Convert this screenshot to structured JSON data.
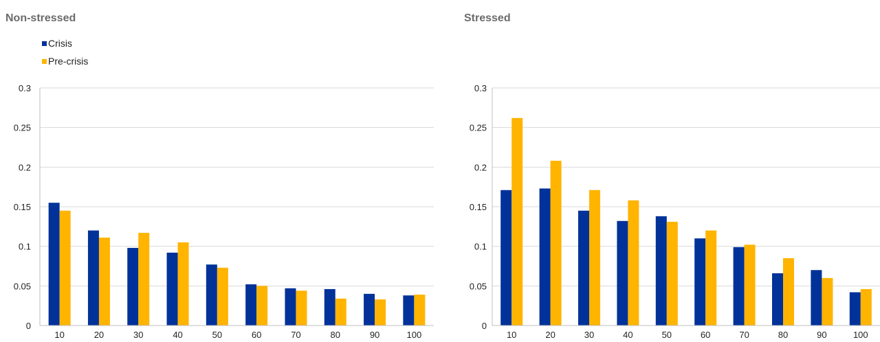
{
  "colors": {
    "crisis": "#003299",
    "pre_crisis": "#FFB400",
    "title": "#6b6b6b",
    "text": "#222222",
    "grid": "#d9d9d9",
    "axis": "#bfbfbf"
  },
  "legend": {
    "items": [
      {
        "label": "Crisis",
        "color": "#003299"
      },
      {
        "label": "Pre-crisis",
        "color": "#FFB400"
      }
    ]
  },
  "chart_data": [
    {
      "type": "bar",
      "title": "Non-stressed",
      "xlabel": "",
      "ylabel": "",
      "categories": [
        "10",
        "20",
        "30",
        "40",
        "50",
        "60",
        "70",
        "80",
        "90",
        "100"
      ],
      "series": [
        {
          "name": "Crisis",
          "color": "#003299",
          "values": [
            0.155,
            0.12,
            0.098,
            0.092,
            0.077,
            0.052,
            0.047,
            0.046,
            0.04,
            0.038
          ]
        },
        {
          "name": "Pre-crisis",
          "color": "#FFB400",
          "values": [
            0.145,
            0.111,
            0.117,
            0.105,
            0.073,
            0.05,
            0.044,
            0.034,
            0.033,
            0.039
          ]
        }
      ],
      "ylim": [
        0,
        0.3
      ],
      "yticks": [
        "0",
        "0.05",
        "0.1",
        "0.15",
        "0.2",
        "0.25",
        "0.3"
      ],
      "grid": true,
      "legend": "top-left"
    },
    {
      "type": "bar",
      "title": "Stressed",
      "xlabel": "",
      "ylabel": "",
      "categories": [
        "10",
        "20",
        "30",
        "40",
        "50",
        "60",
        "70",
        "80",
        "90",
        "100"
      ],
      "series": [
        {
          "name": "Crisis",
          "color": "#003299",
          "values": [
            0.171,
            0.173,
            0.145,
            0.132,
            0.138,
            0.11,
            0.099,
            0.066,
            0.07,
            0.042
          ]
        },
        {
          "name": "Pre-crisis",
          "color": "#FFB400",
          "values": [
            0.262,
            0.208,
            0.171,
            0.158,
            0.131,
            0.12,
            0.102,
            0.085,
            0.06,
            0.046
          ]
        }
      ],
      "ylim": [
        0,
        0.3
      ],
      "yticks": [
        "0",
        "0.05",
        "0.1",
        "0.15",
        "0.2",
        "0.25",
        "0.3"
      ],
      "grid": true,
      "legend": "none"
    }
  ]
}
